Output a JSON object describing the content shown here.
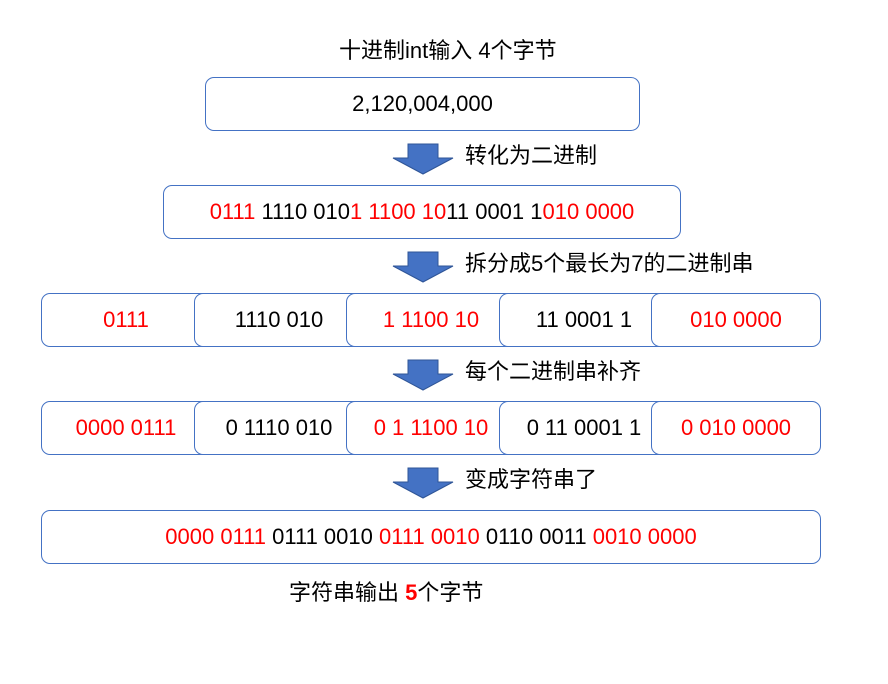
{
  "colors": {
    "accent": "#4472c4",
    "highlight": "#ff0000"
  },
  "title": "十进制int输入 4个字节",
  "input_value": "2,120,004,000",
  "steps": [
    {
      "label": "转化为二进制",
      "icon": "down-arrow-icon"
    },
    {
      "label": "拆分成5个最长为7的二进制串",
      "icon": "down-arrow-icon"
    },
    {
      "label": "每个二进制串补齐",
      "icon": "down-arrow-icon"
    },
    {
      "label": "变成字符串了",
      "icon": "down-arrow-icon"
    }
  ],
  "binary": [
    {
      "text": "0111",
      "red": true
    },
    {
      "text": " 1110 010",
      "red": false
    },
    {
      "text": "1 1100 10",
      "red": true
    },
    {
      "text": "11 0001 1",
      "red": false
    },
    {
      "text": "010 0000",
      "red": true
    }
  ],
  "split": [
    {
      "text": "0111",
      "red": true
    },
    {
      "text": "1110 010",
      "red": false
    },
    {
      "text": "1 1100 10",
      "red": true
    },
    {
      "text": "11 0001 1",
      "red": false
    },
    {
      "text": "010 0000",
      "red": true
    }
  ],
  "padded": [
    {
      "text": "0000 0111",
      "red": true
    },
    {
      "text": "0 1110 010",
      "red": false
    },
    {
      "text": "0 1 1100 10",
      "red": true
    },
    {
      "text": "0 11 0001 1",
      "red": false
    },
    {
      "text": "0 010 0000",
      "red": true
    }
  ],
  "result": [
    {
      "text": "0000 0111",
      "red": true
    },
    {
      "text": " 0111 0010 ",
      "red": false
    },
    {
      "text": "0111 0010",
      "red": true
    },
    {
      "text": " 0110 0011 ",
      "red": false
    },
    {
      "text": "0010 0000",
      "red": true
    }
  ],
  "footer": {
    "prefix": "字符串输出 ",
    "count": "5",
    "suffix": "个字节"
  }
}
